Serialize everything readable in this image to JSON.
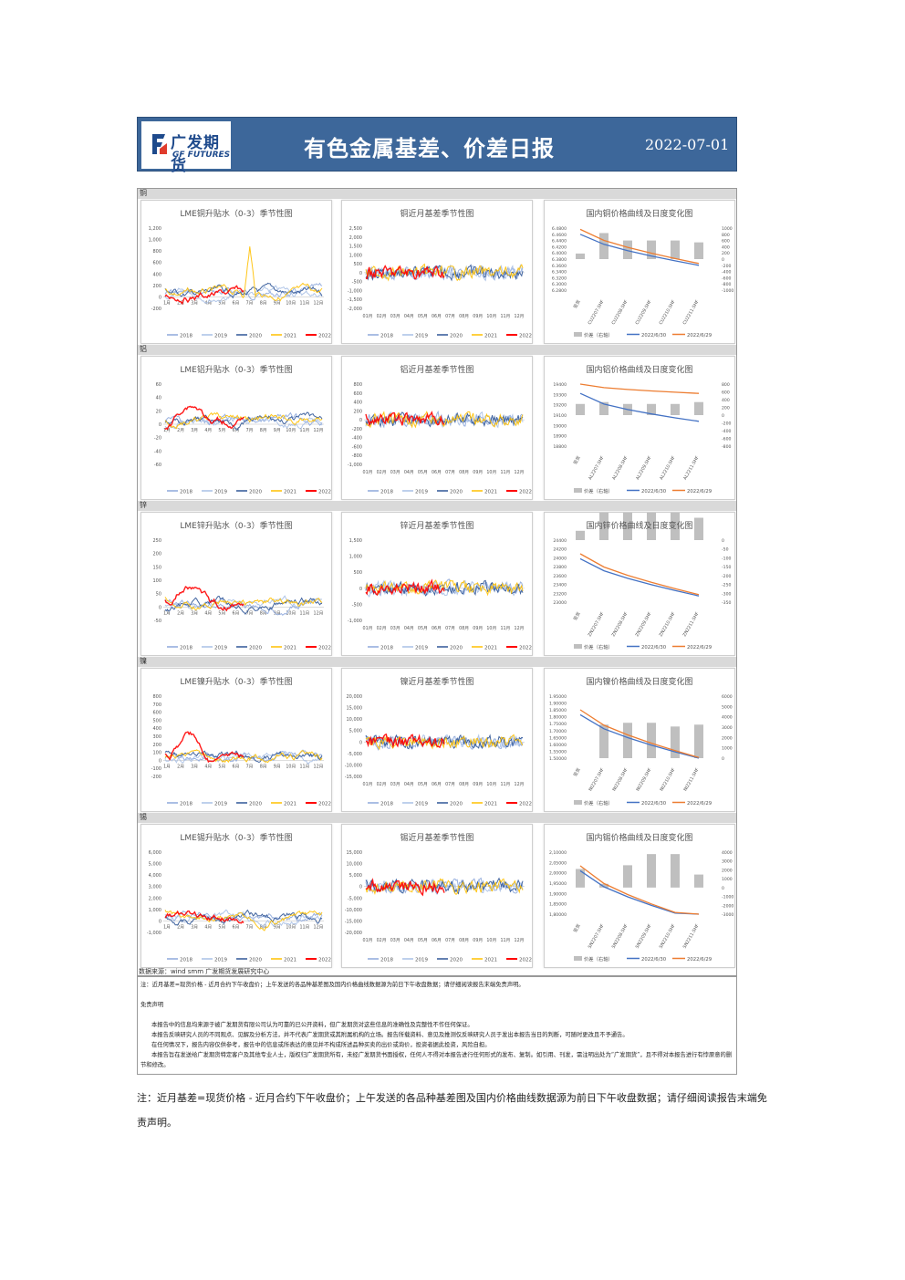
{
  "header": {
    "logo_cn": "广发期货",
    "logo_en": "GF FUTURES",
    "title": "有色金属基差、价差日报",
    "date": "2022-07-01",
    "bg_color": "#3d679a"
  },
  "sections": [
    {
      "label": "铜",
      "lme": {
        "title": "LME铜升贴水（0-3）季节性图",
        "yticks": [
          "1,200",
          "1,000",
          "800",
          "600",
          "400",
          "200",
          "0",
          "-200"
        ],
        "xticks": [
          "1月",
          "2月",
          "3月",
          "4月",
          "5月",
          "6月",
          "7月",
          "8月",
          "9月",
          "10月",
          "11月",
          "12月"
        ]
      },
      "basis": {
        "title": "铜近月基差季节性图",
        "yticks": [
          "2,500",
          "2,000",
          "1,500",
          "1,000",
          "500",
          "0",
          "-500",
          "-1,000",
          "-1,500",
          "-2,000"
        ],
        "xticks": [
          "01月",
          "02月",
          "03月",
          "04月",
          "05月",
          "06月",
          "07月",
          "08月",
          "09月",
          "10月",
          "11月",
          "12月"
        ]
      },
      "price": {
        "title": "国内铜价格曲线及日度变化图",
        "yleft": [
          "6.4800",
          "6.4600",
          "6.4400",
          "6.4200",
          "6.4000",
          "6.3800",
          "6.3600",
          "6.3400",
          "6.3200",
          "6.3000",
          "6.2800"
        ],
        "yright": [
          "1000",
          "800",
          "600",
          "400",
          "200",
          "0",
          "-200",
          "-400",
          "-600",
          "-800",
          "-1000"
        ],
        "xcats": [
          "现货",
          "CU2207.SHF",
          "CU2208.SHF",
          "CU2209.SHF",
          "CU2210.SHF",
          "CU2211.SHF"
        ],
        "legend": [
          "价差（右轴）",
          "2022/6/30",
          "2022/6/29"
        ]
      }
    },
    {
      "label": "铝",
      "lme": {
        "title": "LME铝升贴水（0-3）季节性图",
        "yticks": [
          "60",
          "40",
          "20",
          "0",
          "-20",
          "-40",
          "-60"
        ],
        "xticks": [
          "1月",
          "2月",
          "3月",
          "4月",
          "5月",
          "6月",
          "7月",
          "8月",
          "9月",
          "10月",
          "11月",
          "12月"
        ]
      },
      "basis": {
        "title": "铝近月基差季节性图",
        "yticks": [
          "800",
          "600",
          "400",
          "200",
          "0",
          "-200",
          "-400",
          "-600",
          "-800",
          "-1,000"
        ],
        "xticks": [
          "01月",
          "02月",
          "03月",
          "04月",
          "05月",
          "06月",
          "07月",
          "08月",
          "09月",
          "10月",
          "11月",
          "12月"
        ]
      },
      "price": {
        "title": "国内铝价格曲线及日度变化图",
        "yleft": [
          "19400",
          "19300",
          "19200",
          "19100",
          "19000",
          "18900",
          "18800"
        ],
        "yright": [
          "800",
          "600",
          "400",
          "200",
          "0",
          "-200",
          "-400",
          "-600",
          "-800"
        ],
        "xcats": [
          "现货",
          "AL2207.SHF",
          "AL2208.SHF",
          "AL2209.SHF",
          "AL2210.SHF",
          "AL2211.SHF"
        ],
        "legend": [
          "价差（右轴）",
          "2022/6/30",
          "2022/6/29"
        ]
      }
    },
    {
      "label": "锌",
      "lme": {
        "title": "LME锌升贴水（0-3）季节性图",
        "yticks": [
          "250",
          "200",
          "150",
          "100",
          "50",
          "0",
          "-50"
        ],
        "xticks": [
          "1月",
          "2月",
          "3月",
          "4月",
          "5月",
          "6月",
          "7月",
          "8月",
          "9月",
          "10月",
          "11月",
          "12月"
        ]
      },
      "basis": {
        "title": "锌近月基差季节性图",
        "yticks": [
          "1,500",
          "1,000",
          "500",
          "0",
          "-500",
          "-1,000"
        ],
        "xticks": [
          "01月",
          "02月",
          "03月",
          "04月",
          "05月",
          "06月",
          "07月",
          "08月",
          "09月",
          "10月",
          "11月",
          "12月"
        ]
      },
      "price": {
        "title": "国内锌价格曲线及日度变化图",
        "yleft": [
          "24400",
          "24200",
          "24000",
          "23800",
          "23600",
          "23400",
          "23200",
          "23000"
        ],
        "yright": [
          "0",
          "-50",
          "-100",
          "-150",
          "-200",
          "-250",
          "-300",
          "-350"
        ],
        "xcats": [
          "现货",
          "ZN2207.SHF",
          "ZN2208.SHF",
          "ZN2209.SHF",
          "ZN2210.SHF",
          "ZN2211.SHF"
        ],
        "legend": [
          "价差（右轴）",
          "2022/6/30",
          "2022/6/29"
        ]
      }
    },
    {
      "label": "镍",
      "lme": {
        "title": "LME镍升贴水（0-3）季节性图",
        "yticks": [
          "800",
          "700",
          "600",
          "500",
          "400",
          "300",
          "200",
          "100",
          "0",
          "-100",
          "-200"
        ],
        "xticks": [
          "1月",
          "2月",
          "3月",
          "4月",
          "5月",
          "6月",
          "7月",
          "8月",
          "9月",
          "10月",
          "11月",
          "12月"
        ]
      },
      "basis": {
        "title": "镍近月基差季节性图",
        "yticks": [
          "20,000",
          "15,000",
          "10,000",
          "5,000",
          "0",
          "-5,000",
          "-10,000",
          "-15,000"
        ],
        "xticks": [
          "01月",
          "02月",
          "03月",
          "04月",
          "05月",
          "06月",
          "07月",
          "08月",
          "09月",
          "10月",
          "11月",
          "12月"
        ]
      },
      "price": {
        "title": "国内镍价格曲线及日度变化图",
        "yleft": [
          "1.95000",
          "1.90000",
          "1.85000",
          "1.80000",
          "1.75000",
          "1.70000",
          "1.65000",
          "1.60000",
          "1.55000",
          "1.50000"
        ],
        "yright": [
          "6000",
          "5000",
          "4000",
          "3000",
          "2000",
          "1000",
          "0"
        ],
        "xcats": [
          "现货",
          "NI2207.SHF",
          "NI2208.SHF",
          "NI2209.SHF",
          "NI2210.SHF",
          "NI2211.SHF"
        ],
        "legend": [
          "价差（右轴）",
          "2022/6/30",
          "2022/6/29"
        ]
      }
    },
    {
      "label": "锡",
      "lme": {
        "title": "LME锡升贴水（0-3）季节性图",
        "yticks": [
          "6,000",
          "5,000",
          "4,000",
          "3,000",
          "2,000",
          "1,000",
          "0",
          "-1,000"
        ],
        "xticks": [
          "1月",
          "2月",
          "3月",
          "4月",
          "5月",
          "6月",
          "7月",
          "8月",
          "9月",
          "10月",
          "11月",
          "12月"
        ]
      },
      "basis": {
        "title": "锡近月基差季节性图",
        "yticks": [
          "15,000",
          "10,000",
          "5,000",
          "0",
          "-5,000",
          "-10,000",
          "-15,000",
          "-20,000"
        ],
        "xticks": [
          "01月",
          "02月",
          "03月",
          "04月",
          "05月",
          "06月",
          "07月",
          "08月",
          "09月",
          "10月",
          "11月",
          "12月"
        ]
      },
      "price": {
        "title": "国内锡价格曲线及日度变化图",
        "yleft": [
          "2,10000",
          "2,05000",
          "2,00000",
          "1,95000",
          "1,90000",
          "1,85000",
          "1,80000"
        ],
        "yright": [
          "4000",
          "3000",
          "2000",
          "1000",
          "0",
          "-1000",
          "-2000",
          "-3000"
        ],
        "xcats": [
          "现货",
          "SN2207.SHF",
          "SN2208.SHF",
          "SN2209.SHF",
          "SN2210.SHF",
          "SN2211.SHF"
        ],
        "legend": [
          "价差（右轴）",
          "2022/6/30",
          "2022/6/29"
        ]
      }
    }
  ],
  "season_legend": [
    "2018",
    "2019",
    "2020",
    "2021",
    "2022"
  ],
  "season_colors": {
    "2018": "#8ea9db",
    "2019": "#a9c0e6",
    "2020": "#2f5597",
    "2021": "#ffc000",
    "2022": "#ff0000"
  },
  "price_colors": {
    "spread": "#bfbfbf",
    "d630": "#4472c4",
    "d629": "#ed7d31"
  },
  "source": "数据来源：wind smm 广发期货发展研究中心",
  "note_box": {
    "line1": "注：近月基差=现货价格 - 近月合约下午收盘价；上午发送的各品种基差图及国内价格曲线数据源为前日下午收盘数据；请仔细阅读报告末端免责声明。",
    "disclaimer_title": "免责声明",
    "p1": "本报告中的信息均来源于被广发期货有限公司认为可靠的已公开资料，但广发期货对这些信息的准确性及完整性不作任何保证。",
    "p2": "本报告反映研究人员的不同观点、见解及分析方法，并不代表广发期货或其附属机构的立场。报告所载资料、意见及推测仅反映研究人员于发出本报告当日的判断，可随时更改且不予通告。",
    "p3": "在任何情况下，报告内容仅供参考，报告中的信息或所表达的意见并不构成所述品种买卖的出价或询价，投资者据此投资，风险自担。",
    "p4": "本报告旨在发送给广发期货特定客户及其他专业人士，版权归广发期货所有，未经广发期货书面授权，任何人不得对本报告进行任何形式的发布、复制。如引用、刊发，需注明出处为“广发期货”，且不得对本报告进行有悖原意的删节和修改。"
  },
  "bottom_note": "注：近月基差=现货价格 - 近月合约下午收盘价；上午发送的各品种基差图及国内价格曲线数据源为前日下午收盘数据；请仔细阅读报告末端免责声明。"
}
